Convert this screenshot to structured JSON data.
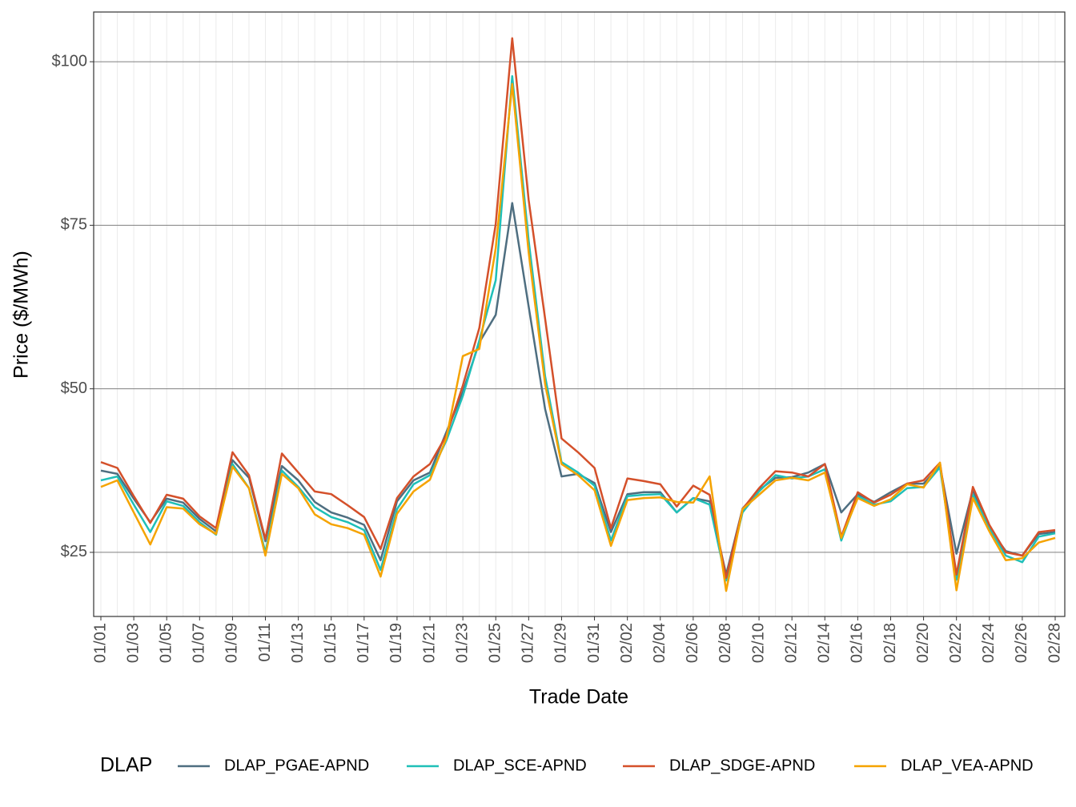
{
  "chart_data": {
    "type": "line",
    "x_label": "Trade Date",
    "y_label": "Price ($/MWh)",
    "legend_title": "DLAP",
    "legend_position": "bottom",
    "grid": true,
    "categories": [
      "01/01",
      null,
      "01/03",
      null,
      "01/05",
      null,
      "01/07",
      null,
      "01/09",
      null,
      "01/11",
      null,
      "01/13",
      null,
      "01/15",
      null,
      "01/17",
      null,
      "01/19",
      null,
      "01/21",
      null,
      "01/23",
      null,
      "01/25",
      null,
      "01/27",
      null,
      "01/29",
      null,
      "01/31",
      null,
      "02/02",
      null,
      "02/04",
      null,
      "02/06",
      null,
      "02/08",
      null,
      "02/10",
      null,
      "02/12",
      null,
      "02/14",
      null,
      "02/16",
      null,
      "02/18",
      null,
      "02/20",
      null,
      "02/22",
      null,
      "02/24",
      null,
      "02/26",
      null,
      "02/28"
    ],
    "ylim": [
      15.2,
      107.6
    ],
    "yticks": [
      {
        "value": 25,
        "label": "$25"
      },
      {
        "value": 50,
        "label": "$50"
      },
      {
        "value": 75,
        "label": "$75"
      },
      {
        "value": 100,
        "label": "$100"
      }
    ],
    "series": [
      {
        "name": "DLAP_PGAE-APND",
        "color": "#4e6e80",
        "values": [
          37.5,
          37.0,
          33.2,
          29.6,
          33.2,
          32.6,
          30.1,
          28.2,
          39.1,
          36.4,
          26.7,
          38.2,
          36.0,
          32.7,
          31.1,
          30.3,
          29.2,
          23.8,
          32.8,
          36.0,
          37.2,
          43.4,
          49.5,
          57.1,
          61.3,
          78.4,
          62.6,
          46.9,
          36.6,
          37.0,
          35.6,
          28.1,
          33.9,
          34.2,
          34.2,
          31.1,
          33.3,
          32.8,
          21.6,
          31.7,
          34.5,
          36.4,
          36.5,
          37.2,
          38.5,
          31.1,
          33.9,
          32.7,
          34.2,
          35.5,
          35.5,
          38.2,
          24.8,
          34.5,
          28.7,
          25.2,
          24.5,
          27.8,
          28.1
        ]
      },
      {
        "name": "DLAP_SCE-APND",
        "color": "#1fbfb8",
        "values": [
          36.0,
          36.6,
          32.3,
          28.1,
          32.8,
          32.1,
          29.6,
          27.7,
          38.5,
          34.8,
          25.0,
          37.5,
          35.0,
          31.9,
          30.4,
          29.6,
          28.4,
          22.3,
          31.6,
          35.4,
          36.8,
          42.1,
          48.9,
          57.4,
          66.6,
          97.8,
          72.7,
          51.9,
          38.8,
          37.2,
          35.2,
          26.8,
          33.6,
          33.8,
          33.9,
          31.1,
          33.3,
          32.3,
          20.7,
          31.1,
          34.3,
          36.8,
          36.3,
          36.6,
          37.7,
          26.8,
          33.6,
          32.3,
          32.8,
          34.8,
          35.0,
          38.0,
          20.8,
          33.8,
          28.7,
          24.5,
          23.5,
          27.4,
          27.9
        ]
      },
      {
        "name": "DLAP_SDGE-APND",
        "color": "#d4502a",
        "values": [
          38.8,
          37.9,
          33.6,
          29.5,
          33.8,
          33.2,
          30.5,
          28.7,
          40.3,
          36.8,
          27.0,
          40.1,
          37.2,
          34.3,
          33.9,
          32.2,
          30.4,
          25.5,
          33.3,
          36.6,
          38.5,
          42.9,
          50.5,
          59.3,
          75.2,
          103.6,
          78.9,
          60.7,
          42.4,
          40.3,
          37.9,
          28.7,
          36.3,
          35.9,
          35.4,
          32.0,
          35.2,
          33.8,
          21.1,
          31.6,
          34.8,
          37.4,
          37.2,
          36.6,
          38.5,
          27.4,
          34.2,
          32.6,
          33.8,
          35.5,
          36.0,
          38.7,
          21.6,
          35.0,
          29.2,
          25.0,
          24.5,
          28.1,
          28.4
        ]
      },
      {
        "name": "DLAP_VEA-APND",
        "color": "#f5a300",
        "values": [
          35.0,
          36.0,
          31.1,
          26.2,
          31.9,
          31.7,
          29.3,
          27.8,
          38.1,
          34.8,
          24.5,
          37.0,
          34.8,
          30.8,
          29.3,
          28.7,
          27.7,
          21.3,
          30.9,
          34.3,
          36.1,
          42.5,
          55.0,
          56.1,
          71.5,
          96.6,
          70.9,
          50.7,
          38.5,
          36.8,
          34.5,
          26.0,
          33.0,
          33.3,
          33.4,
          32.7,
          32.6,
          36.6,
          19.1,
          31.6,
          33.8,
          36.0,
          36.4,
          36.0,
          37.2,
          27.2,
          33.3,
          32.1,
          33.1,
          35.4,
          34.9,
          38.7,
          19.2,
          33.3,
          28.2,
          23.8,
          24.1,
          26.5,
          27.2
        ]
      }
    ]
  }
}
